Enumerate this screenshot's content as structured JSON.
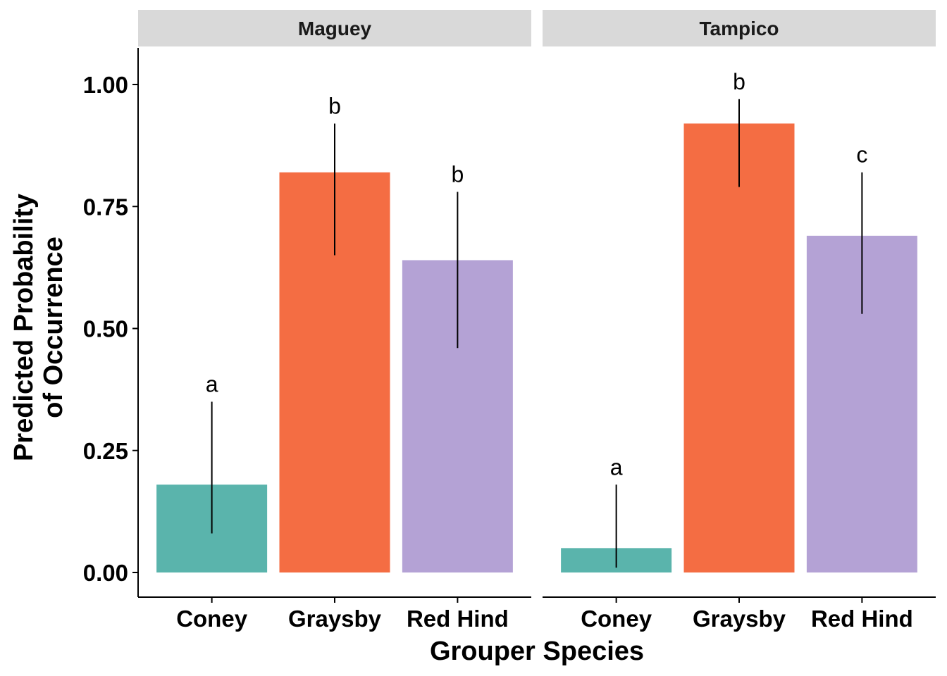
{
  "chart_data": {
    "type": "bar",
    "xlabel": "Grouper Species",
    "ylabel_lines": [
      "Predicted Probability",
      "of Occurrence"
    ],
    "ylim": [
      0,
      1.08
    ],
    "yticks": [
      0.0,
      0.25,
      0.5,
      0.75,
      1.0
    ],
    "ytick_labels": [
      "0.00",
      "0.25",
      "0.50",
      "0.75",
      "1.00"
    ],
    "grid": false,
    "legend": "none",
    "categories": [
      "Coney",
      "Graysby",
      "Red Hind"
    ],
    "colors": {
      "Coney": "#5ab4ac",
      "Graysby": "#f46d43",
      "Red Hind": "#b4a2d5"
    },
    "panels": [
      {
        "name": "Maguey",
        "values": [
          0.18,
          0.82,
          0.64
        ],
        "error_low": [
          0.08,
          0.65,
          0.46
        ],
        "error_high": [
          0.35,
          0.92,
          0.78
        ],
        "labels": [
          "a",
          "b",
          "b"
        ]
      },
      {
        "name": "Tampico",
        "values": [
          0.05,
          0.92,
          0.69
        ],
        "error_low": [
          0.01,
          0.79,
          0.53
        ],
        "error_high": [
          0.18,
          0.97,
          0.82
        ],
        "labels": [
          "a",
          "b",
          "c"
        ]
      }
    ]
  }
}
